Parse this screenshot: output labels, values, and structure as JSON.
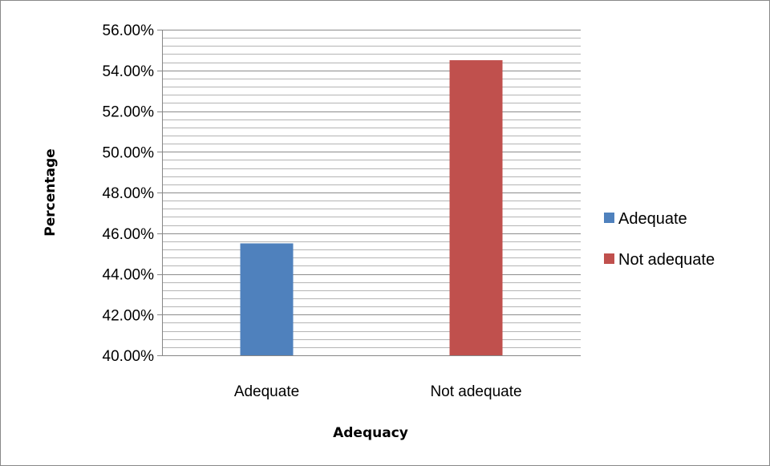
{
  "chart_data": {
    "type": "bar",
    "categories": [
      "Adequate",
      "Not adequate"
    ],
    "values": [
      45.5,
      54.5
    ],
    "colors": [
      "#4f81bd",
      "#c0504d"
    ],
    "xlabel": "Adequacy",
    "ylabel": "Percentage",
    "ylim": [
      40,
      56
    ],
    "y_major_step": 2,
    "y_minor_step": 0.4,
    "y_tick_labels": [
      "40.00%",
      "42.00%",
      "44.00%",
      "46.00%",
      "48.00%",
      "50.00%",
      "52.00%",
      "54.00%",
      "56.00%"
    ],
    "grid": true,
    "legend": {
      "position": "right",
      "entries": [
        {
          "label": "Adequate",
          "color": "#4f81bd"
        },
        {
          "label": "Not adequate",
          "color": "#c0504d"
        }
      ]
    }
  }
}
